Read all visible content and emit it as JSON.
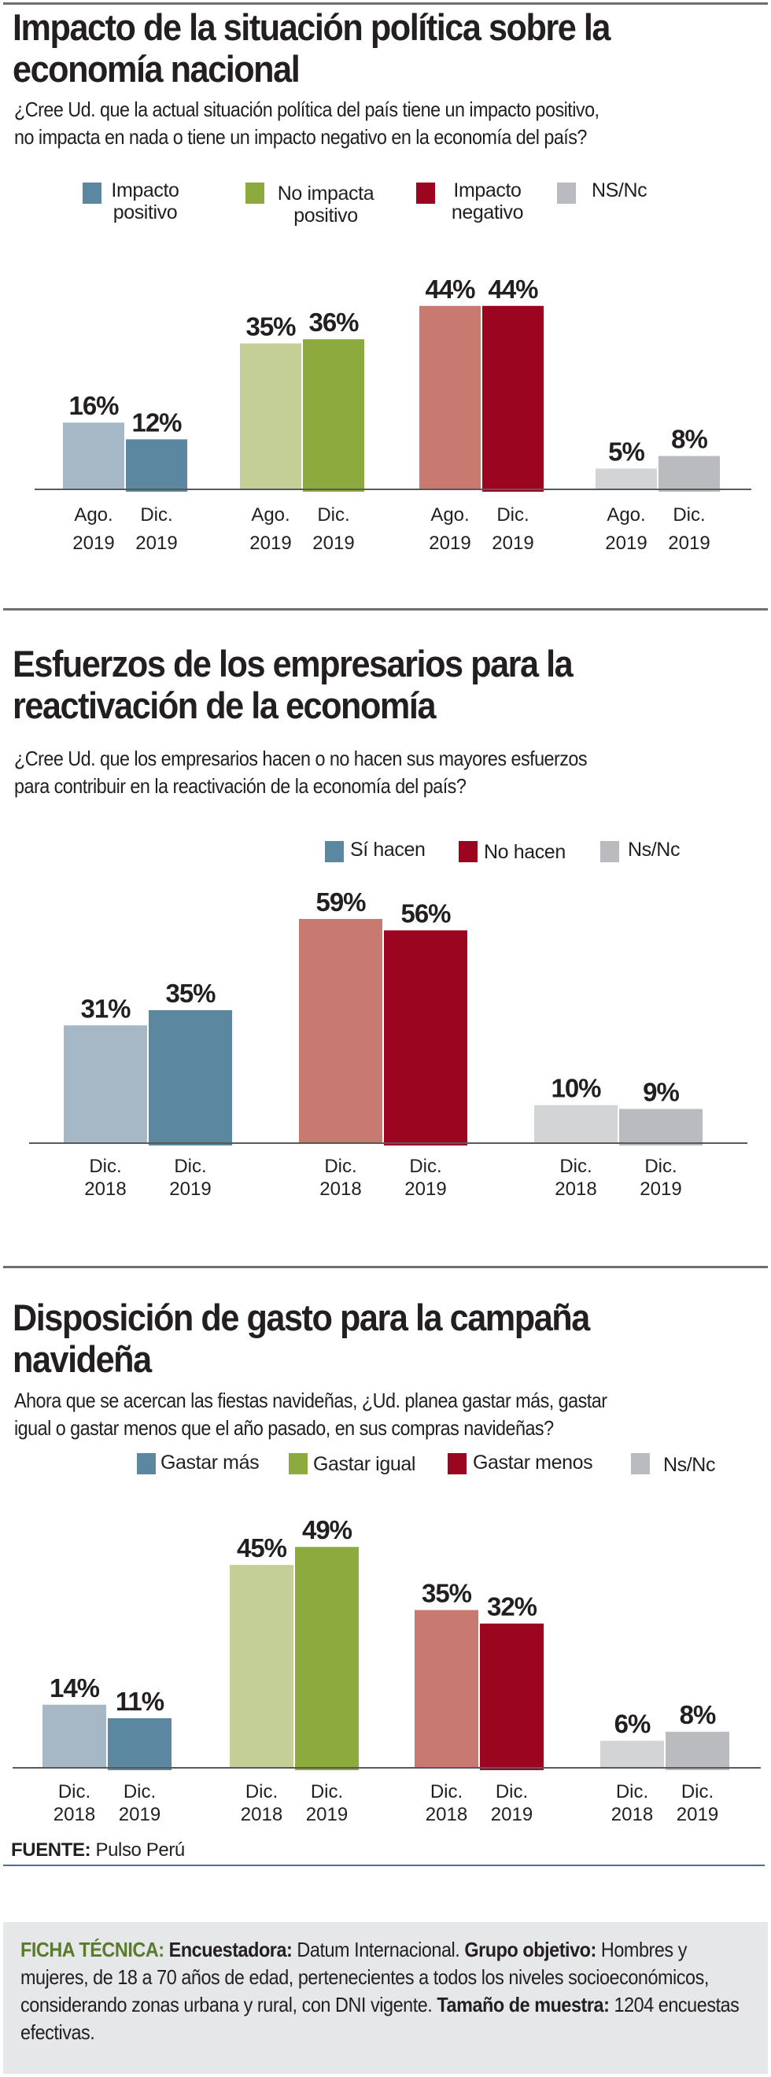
{
  "colors": {
    "blue_light": "#a6b8c6",
    "blue": "#5b87a0",
    "green_light": "#c4cf98",
    "green": "#8daa3e",
    "red_light": "#c97a70",
    "red": "#9b0520",
    "gray_light": "#d3d4d6",
    "gray": "#babbbe",
    "axis": "#58595b",
    "ficha_heading": "#5a7a2e"
  },
  "sections": [
    {
      "title_lines": [
        "Impacto de la situación política sobre la",
        "economía nacional"
      ],
      "question_lines": [
        "¿Cree Ud. que la actual situación política del país tiene un impacto positivo,",
        "no impacta en nada o tiene un impacto negativo en la economía del país?"
      ],
      "legend": [
        {
          "line1": "Impacto",
          "line2": "positivo",
          "color": "#5b87a0"
        },
        {
          "line1": "No impacta",
          "line2": "positivo",
          "color": "#8daa3e"
        },
        {
          "line1": "Impacto",
          "line2": "negativo",
          "color": "#9b0520"
        },
        {
          "line1": "NS/Nc",
          "line2": "",
          "color": "#babbbe"
        }
      ]
    },
    {
      "title_lines": [
        "Esfuerzos de los empresarios para la",
        "reactivación de la economía"
      ],
      "question_lines": [
        "¿Cree Ud. que los empresarios hacen o no hacen sus mayores esfuerzos",
        "para contribuir en la reactivación de la economía del país?"
      ],
      "legend": [
        {
          "line1": "Sí hacen",
          "color": "#5b87a0"
        },
        {
          "line1": "No hacen",
          "color": "#9b0520"
        },
        {
          "line1": "Ns/Nc",
          "color": "#babbbe"
        }
      ]
    },
    {
      "title_lines": [
        "Disposición de gasto para la campaña",
        "navideña"
      ],
      "question_lines": [
        "Ahora que se acercan las fiestas navideñas, ¿Ud. planea gastar más, gastar",
        "igual o gastar menos que el año pasado, en sus compras navideñas?"
      ],
      "legend": [
        {
          "line1": "Gastar más",
          "color": "#5b87a0"
        },
        {
          "line1": "Gastar igual",
          "color": "#8daa3e"
        },
        {
          "line1": "Gastar menos",
          "color": "#9b0520"
        },
        {
          "line1": "Ns/Nc",
          "color": "#babbbe"
        }
      ]
    }
  ],
  "chart_data": [
    {
      "type": "bar",
      "title": "Impacto de la situación política sobre la economía nacional",
      "categories": [
        "Impacto positivo",
        "No impacta positivo",
        "Impacto negativo",
        "NS/Nc"
      ],
      "periods": [
        [
          "Ago.",
          "2019"
        ],
        [
          "Dic.",
          "2019"
        ]
      ],
      "series": [
        {
          "name": "Ago. 2019",
          "values": [
            16,
            35,
            44,
            5
          ]
        },
        {
          "name": "Dic. 2019",
          "values": [
            12,
            36,
            44,
            8
          ]
        }
      ],
      "value_suffix": "%",
      "ylim": [
        0,
        50
      ],
      "grid": false,
      "legend": "top"
    },
    {
      "type": "bar",
      "title": "Esfuerzos de los empresarios para la reactivación de la economía",
      "categories": [
        "Sí hacen",
        "No hacen",
        "Ns/Nc"
      ],
      "periods": [
        [
          "Dic.",
          "2018"
        ],
        [
          "Dic.",
          "2019"
        ]
      ],
      "series": [
        {
          "name": "Dic. 2018",
          "values": [
            31,
            59,
            10
          ]
        },
        {
          "name": "Dic. 2019",
          "values": [
            35,
            56,
            9
          ]
        }
      ],
      "value_suffix": "%",
      "ylim": [
        0,
        65
      ],
      "grid": false,
      "legend": "top-right"
    },
    {
      "type": "bar",
      "title": "Disposición de gasto para la campaña navideña",
      "categories": [
        "Gastar más",
        "Gastar igual",
        "Gastar menos",
        "Ns/Nc"
      ],
      "periods": [
        [
          "Dic.",
          "2018"
        ],
        [
          "Dic.",
          "2019"
        ]
      ],
      "series": [
        {
          "name": "Dic. 2018",
          "values": [
            14,
            45,
            35,
            6
          ]
        },
        {
          "name": "Dic. 2019",
          "values": [
            11,
            49,
            32,
            8
          ]
        }
      ],
      "value_suffix": "%",
      "ylim": [
        0,
        55
      ],
      "grid": false,
      "legend": "top"
    }
  ],
  "footer": {
    "source_label": "FUENTE:",
    "source_value": " Pulso Perú",
    "ficha": {
      "heading": "FICHA TÉCNICA:",
      "encuestadora_label": "Encuestadora:",
      "encuestadora_value": " Datum Internacional. ",
      "grupo_label": "Grupo objetivo:",
      "grupo_value": " Hombres y mujeres, de 18 a 70 años de edad, pertenecientes a todos los niveles socioeconómicos, considerando zonas urbana y rural, con DNI vigente. ",
      "muestra_label": "Tamaño de muestra:",
      "muestra_value": " 1204 encuestas efectivas."
    }
  }
}
